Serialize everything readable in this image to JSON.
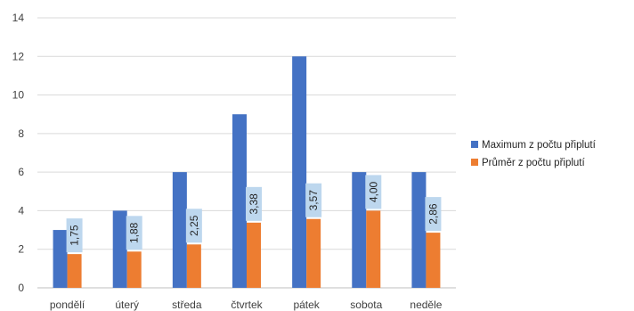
{
  "chart_data": {
    "type": "bar",
    "title": "",
    "xlabel": "",
    "ylabel": "",
    "ylim": [
      0,
      14
    ],
    "yticks": [
      0,
      2,
      4,
      6,
      8,
      10,
      12,
      14
    ],
    "grid": true,
    "legend_position": "right",
    "categories": [
      "pondělí",
      "úterý",
      "středa",
      "čtvrtek",
      "pátek",
      "sobota",
      "neděle"
    ],
    "series": [
      {
        "name": "Maximum z počtu připlutí",
        "color": "#4472C4",
        "values": [
          3,
          4,
          6,
          9,
          12,
          6,
          6
        ]
      },
      {
        "name": "Průměr z počtu připlutí",
        "color": "#ED7D31",
        "values": [
          1.75,
          1.88,
          2.25,
          3.38,
          3.57,
          4.0,
          2.86
        ],
        "data_labels": [
          "1,75",
          "1,88",
          "2,25",
          "3,38",
          "3,57",
          "4,00",
          "2,86"
        ],
        "label_box_color": "#BDD7EE"
      }
    ]
  }
}
